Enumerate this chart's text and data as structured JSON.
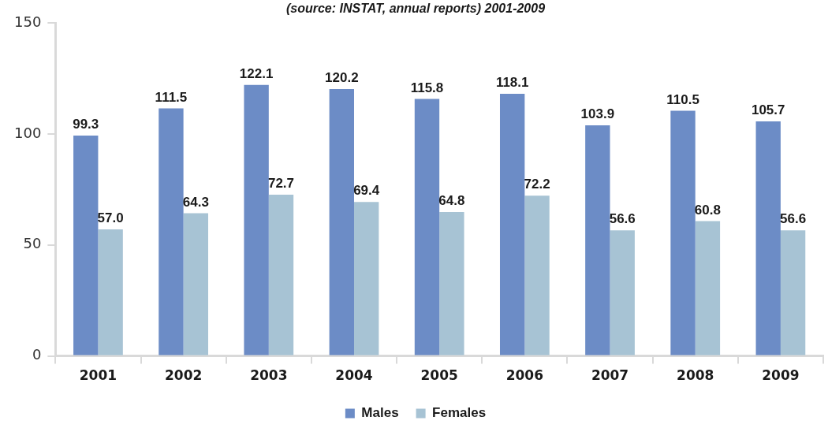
{
  "chart_data": {
    "type": "bar",
    "subtitle": "(source: INSTAT, annual reports) 2001-2009",
    "categories": [
      "2001",
      "2002",
      "2003",
      "2004",
      "2005",
      "2006",
      "2007",
      "2008",
      "2009"
    ],
    "series": [
      {
        "name": "Males",
        "color": "#6c8cc6",
        "values": [
          99.3,
          111.5,
          122.1,
          120.2,
          115.8,
          118.1,
          103.9,
          110.5,
          105.7
        ],
        "value_labels": [
          "99.3",
          "111.5",
          "122.1",
          "120.2",
          "115.8",
          "118.1",
          "103.9",
          "110.5",
          "105.7"
        ]
      },
      {
        "name": "Females",
        "color": "#a7c3d4",
        "values": [
          57.0,
          64.3,
          72.7,
          69.4,
          64.8,
          72.2,
          56.6,
          60.8,
          56.6
        ],
        "value_labels": [
          "57.0",
          "64.3",
          "72.7",
          "69.4",
          "64.8",
          "72.2",
          "56.6",
          "60.8",
          "56.6"
        ]
      }
    ],
    "ylim": [
      0,
      150
    ],
    "yticks": [
      0,
      50,
      100,
      150
    ],
    "grid": false,
    "legend": "bottom"
  }
}
